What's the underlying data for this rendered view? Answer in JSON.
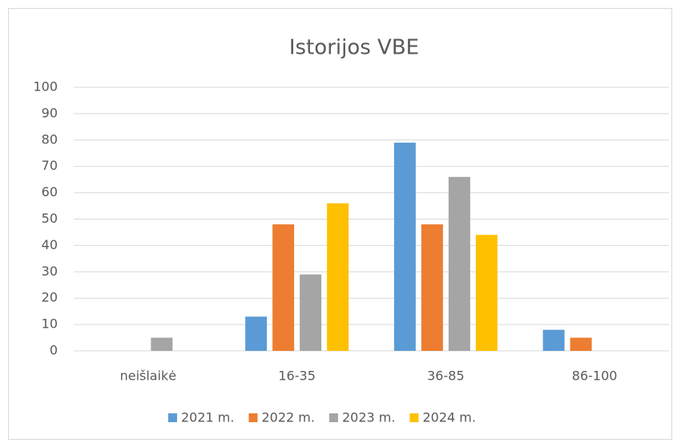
{
  "chart_data": {
    "type": "bar",
    "title": "Istorijos VBE",
    "categories": [
      "neišlaikė",
      "16-35",
      "36-85",
      "86-100"
    ],
    "series": [
      {
        "name": "2021 m.",
        "color": "#5b9bd5",
        "values": [
          0,
          13,
          79,
          8
        ]
      },
      {
        "name": "2022 m.",
        "color": "#ed7d31",
        "values": [
          0,
          48,
          48,
          5
        ]
      },
      {
        "name": "2023 m.",
        "color": "#a5a5a5",
        "values": [
          5,
          29,
          66,
          0
        ]
      },
      {
        "name": "2024 m.",
        "color": "#ffc000",
        "values": [
          0,
          56,
          44,
          0
        ]
      }
    ],
    "ylim": [
      0,
      100
    ],
    "yticks": [
      0,
      10,
      20,
      30,
      40,
      50,
      60,
      70,
      80,
      90,
      100
    ],
    "grid": true,
    "legend": "bottom"
  }
}
